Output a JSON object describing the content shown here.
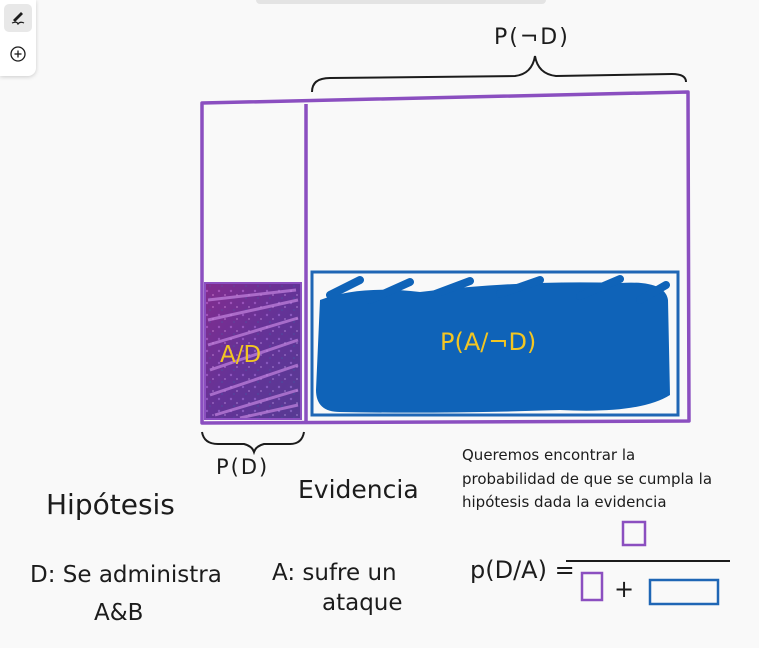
{
  "toolbar": {
    "pen_icon": "pen-icon",
    "add_icon": "add-circle-icon"
  },
  "colors": {
    "purple": "#8b4fc0",
    "blue": "#1f66b5",
    "blue_fill": "#0f63b8",
    "yellow": "#f2c623",
    "ink": "#1c1c1c"
  },
  "labels": {
    "p_not_d": "P(¬D)",
    "p_d": "P(D)",
    "a_given_d": "A/D",
    "p_a_given_not_d": "P(A/¬D)",
    "evidencia": "Evidencia",
    "hipotesis": "Hipótesis",
    "d_def_1": "D: Se administra",
    "d_def_2": "A&B",
    "a_def_1": "A: sufre un",
    "a_def_2": "ataque",
    "formula_lhs": "p(D/A) =",
    "plus": "+"
  },
  "note": {
    "text": "Queremos encontrar la probabilidad de que se cumpla la hipótesis dada la evidencia"
  }
}
